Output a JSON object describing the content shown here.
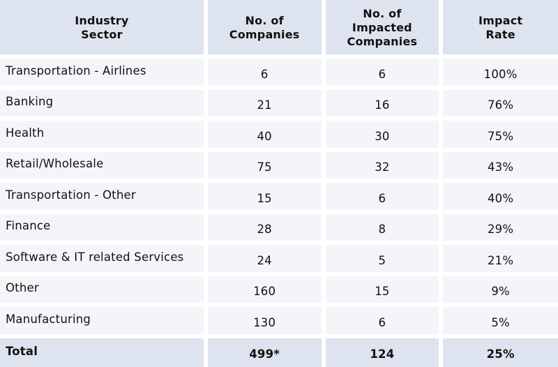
{
  "headers": [
    "Industry\nSector",
    "No. of\nCompanies",
    "No. of\nImpacted\nCompanies",
    "Impact\nRate"
  ],
  "rows": [
    {
      "sector": "Transportation - Airlines",
      "companies": "6",
      "impacted": "6",
      "rate": "100%"
    },
    {
      "sector": "Banking",
      "companies": "21",
      "impacted": "16",
      "rate": "76%"
    },
    {
      "sector": "Health",
      "companies": "40",
      "impacted": "30",
      "rate": "75%"
    },
    {
      "sector": "Retail/Wholesale",
      "companies": "75",
      "impacted": "32",
      "rate": "43%"
    },
    {
      "sector": "Transportation - Other",
      "companies": "15",
      "impacted": "6",
      "rate": "40%"
    },
    {
      "sector": "Finance",
      "companies": "28",
      "impacted": "8",
      "rate": "29%"
    },
    {
      "sector": "Software & IT related Services",
      "companies": "24",
      "impacted": "5",
      "rate": "21%"
    },
    {
      "sector": "Other",
      "companies": "160",
      "impacted": "15",
      "rate": "9%"
    },
    {
      "sector": "Manufacturing",
      "companies": "130",
      "impacted": "6",
      "rate": "5%"
    }
  ],
  "total": {
    "label": "Total",
    "companies": "499*",
    "impacted": "124",
    "rate": "25%"
  },
  "colors": {
    "header_bg": "#dde3ef",
    "row_bg": "#f4f5f8",
    "text": "#111111"
  }
}
